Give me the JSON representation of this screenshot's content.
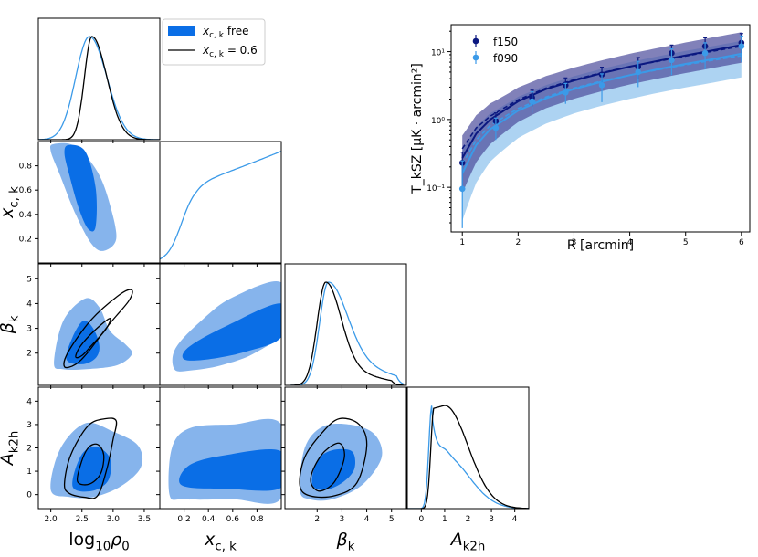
{
  "colors": {
    "free_inner": "#0a6ee6",
    "free_outer": "#86b4ec",
    "fixed_line": "#000000",
    "f150": "#0b1880",
    "f090": "#3b9ae8",
    "f150_band": "#4b4c9b",
    "f090_band": "#6aaee8"
  },
  "corner": {
    "params": [
      {
        "key": "rho",
        "label": "log₁₀ρ₀",
        "range": [
          1.8,
          3.75
        ],
        "ticks": [
          "2.0",
          "2.5",
          "3.0",
          "3.5"
        ],
        "tick_values": [
          2.0,
          2.5,
          3.0,
          3.5
        ]
      },
      {
        "key": "xck",
        "label": "x_c,k",
        "range": [
          0.0,
          1.0
        ],
        "ticks": [
          "0.2",
          "0.4",
          "0.6",
          "0.8"
        ],
        "tick_values": [
          0.2,
          0.4,
          0.6,
          0.8
        ]
      },
      {
        "key": "beta",
        "label": "β_k",
        "range": [
          0.7,
          5.6
        ],
        "ticks": [
          "2",
          "3",
          "4",
          "5"
        ],
        "tick_values": [
          2,
          3,
          4,
          5
        ]
      },
      {
        "key": "a2h",
        "label": "A_k2h",
        "range": [
          -0.6,
          4.6
        ],
        "ticks": [
          "0",
          "1",
          "2",
          "3",
          "4"
        ],
        "tick_values": [
          0,
          1,
          2,
          3,
          4
        ]
      }
    ],
    "y_ticks": {
      "xck": {
        "labels": [
          "0.2",
          "0.4",
          "0.6",
          "0.8"
        ],
        "values": [
          0.2,
          0.4,
          0.6,
          0.8
        ]
      },
      "beta": {
        "labels": [
          "2",
          "3",
          "4",
          "5"
        ],
        "values": [
          2,
          3,
          4,
          5
        ]
      },
      "a2h": {
        "labels": [
          "0",
          "1",
          "2",
          "3",
          "4"
        ],
        "values": [
          0,
          1,
          2,
          3,
          4
        ]
      }
    },
    "y_labels": {
      "xck": "x_c,k",
      "beta": "β_k",
      "a2h": "A_k2h"
    },
    "legend": [
      {
        "name": "x_c,k free",
        "style": "filled"
      },
      {
        "name": "x_c,k = 0.6",
        "style": "line"
      }
    ],
    "posteriors": {
      "free": {
        "rho": {
          "mode": 2.62,
          "peak_density_relative": 1.0
        },
        "xck": {
          "mode": 1.0,
          "peak_density_relative": 0.92,
          "note": "rising"
        },
        "beta": {
          "mode": 2.45,
          "peak_density_relative": 1.0
        },
        "a2h": {
          "mode": 0.45,
          "peak_density_relative": 1.0
        }
      },
      "fixed": {
        "rho": {
          "mode": 2.66,
          "peak_density_relative": 1.0
        },
        "beta": {
          "mode": 2.35,
          "peak_density_relative": 1.0
        },
        "a2h": {
          "mode": 1.0,
          "peak_density_relative": 1.0
        }
      }
    }
  },
  "chart_data": [
    {
      "type": "scatter",
      "title": "",
      "xlabel": "R [arcmin]",
      "ylabel": "T_kSZ [μK · arcmin²]",
      "xlim": [
        0.8,
        6.15
      ],
      "ylim_log": [
        0.022,
        25
      ],
      "x_ticks": [
        1,
        2,
        3,
        4,
        5,
        6
      ],
      "y_ticks": [
        "10⁻¹",
        "10⁰",
        "10¹"
      ],
      "y_tick_values": [
        0.1,
        1,
        10
      ],
      "series": [
        {
          "name": "f150",
          "x": [
            1.0,
            1.6,
            2.25,
            2.85,
            3.5,
            4.15,
            4.75,
            5.35,
            6.0
          ],
          "y": [
            0.23,
            0.95,
            2.1,
            3.2,
            4.6,
            6.0,
            9.5,
            12.0,
            13.5
          ],
          "yerr_low": [
            0.13,
            0.25,
            0.55,
            0.8,
            1.2,
            2.0,
            3.0,
            3.5,
            4.0
          ],
          "yerr_high": [
            0.1,
            0.3,
            0.6,
            0.9,
            1.3,
            2.2,
            3.0,
            4.0,
            5.0
          ],
          "model_x": [
            1.0,
            1.25,
            1.5,
            2.0,
            2.5,
            3.0,
            3.5,
            4.0,
            4.5,
            5.0,
            5.5,
            6.0
          ],
          "model_y": [
            0.27,
            0.62,
            1.0,
            1.85,
            2.8,
            3.75,
            4.8,
            6.0,
            7.3,
            8.8,
            10.5,
            12.5
          ],
          "model_dashed_y": [
            0.37,
            0.75,
            1.12,
            1.95,
            2.9,
            3.85,
            4.9,
            6.0,
            7.2,
            8.6,
            10.2,
            12.0
          ]
        },
        {
          "name": "f090",
          "x": [
            1.0,
            1.6,
            2.25,
            2.85,
            3.5,
            4.15,
            4.75,
            5.35,
            6.0
          ],
          "y": [
            0.095,
            0.75,
            1.85,
            2.5,
            3.2,
            5.0,
            7.5,
            9.5,
            12.0
          ],
          "yerr_low": [
            0.07,
            0.25,
            0.6,
            0.8,
            1.4,
            2.0,
            3.0,
            4.0,
            5.0
          ],
          "yerr_high": [
            0.15,
            0.3,
            0.7,
            0.9,
            1.5,
            2.2,
            3.5,
            4.0,
            5.0
          ],
          "model_x": [
            1.0,
            1.25,
            1.5,
            2.0,
            2.5,
            3.0,
            3.5,
            4.0,
            4.5,
            5.0,
            5.5,
            6.0
          ],
          "model_y": [
            0.16,
            0.42,
            0.72,
            1.35,
            2.05,
            2.8,
            3.6,
            4.5,
            5.5,
            6.6,
            7.8,
            9.3
          ],
          "model_dashed_y": [
            0.22,
            0.5,
            0.82,
            1.45,
            2.15,
            2.9,
            3.7,
            4.5,
            5.4,
            6.4,
            7.5,
            8.7
          ]
        }
      ],
      "legend": [
        "f150",
        "f090"
      ],
      "legend_position": "top-left"
    }
  ]
}
